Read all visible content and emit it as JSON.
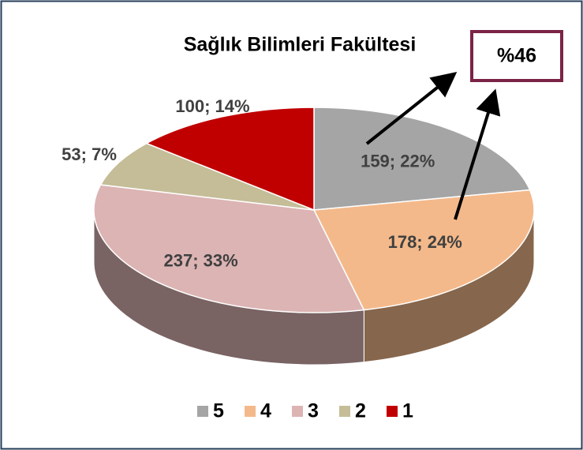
{
  "chart_data": {
    "type": "pie",
    "title": "Sağlık Bilimleri Fakültesi",
    "categories": [
      "5",
      "4",
      "3",
      "2",
      "1"
    ],
    "values": [
      159,
      178,
      237,
      53,
      100
    ],
    "value_labels": [
      "159; 22%",
      "178; 24%",
      "237; 33%",
      "53; 7%",
      "100; 14%"
    ],
    "colors": [
      "#a5a5a5",
      "#f4b98a",
      "#dcb4b4",
      "#c4bd97",
      "#c00000"
    ],
    "annotation": "%46",
    "legend": "bottom"
  }
}
